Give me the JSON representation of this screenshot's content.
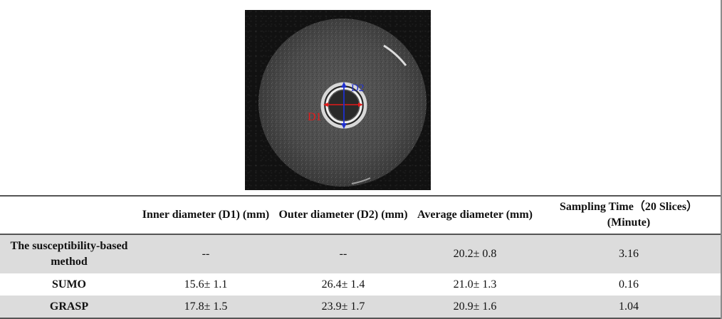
{
  "figure": {
    "labels": {
      "d1": "D1",
      "d2": "D2"
    },
    "colors": {
      "d1_marker": "#e31b1b",
      "d2_marker": "#2030d0"
    }
  },
  "table": {
    "headers": [
      "",
      "Inner diameter (D1) (mm)",
      "Outer diameter (D2) (mm)",
      "Average diameter (mm)",
      "Sampling Time（20 Slices）(Minute)"
    ],
    "rows": [
      {
        "method": "The susceptibility-based method",
        "inner": "--",
        "outer": "--",
        "average": "20.2± 0.8",
        "time": "3.16"
      },
      {
        "method": "SUMO",
        "inner": "15.6± 1.1",
        "outer": "26.4± 1.4",
        "average": "21.0± 1.3",
        "time": "0.16"
      },
      {
        "method": "GRASP",
        "inner": "17.8± 1.5",
        "outer": "23.9± 1.7",
        "average": "20.9± 1.6",
        "time": "1.04"
      }
    ]
  }
}
